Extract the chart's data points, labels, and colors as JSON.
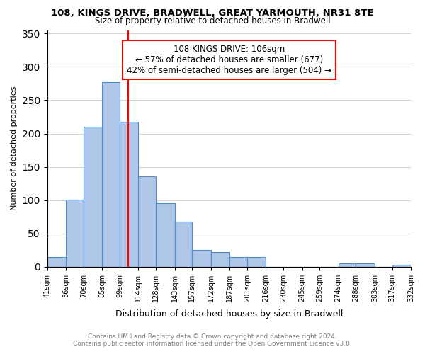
{
  "title1": "108, KINGS DRIVE, BRADWELL, GREAT YARMOUTH, NR31 8TE",
  "title2": "Size of property relative to detached houses in Bradwell",
  "xlabel": "Distribution of detached houses by size in Bradwell",
  "ylabel": "Number of detached properties",
  "bin_edges": [
    41,
    56,
    70,
    85,
    99,
    114,
    128,
    143,
    157,
    172,
    187,
    201,
    216,
    230,
    245,
    259,
    274,
    288,
    303,
    317,
    332
  ],
  "bin_labels": [
    "41sqm",
    "56sqm",
    "70sqm",
    "85sqm",
    "99sqm",
    "114sqm",
    "128sqm",
    "143sqm",
    "157sqm",
    "172sqm",
    "187sqm",
    "201sqm",
    "216sqm",
    "230sqm",
    "245sqm",
    "259sqm",
    "274sqm",
    "288sqm",
    "303sqm",
    "317sqm",
    "332sqm"
  ],
  "counts": [
    15,
    101,
    210,
    277,
    218,
    136,
    95,
    68,
    25,
    22,
    15,
    15,
    0,
    0,
    0,
    0,
    5,
    5,
    0,
    3
  ],
  "bar_facecolor": "#aec6e8",
  "bar_edgecolor": "#4d8fcc",
  "vline_x": 106,
  "vline_color": "red",
  "annotation_title": "108 KINGS DRIVE: 106sqm",
  "annotation_line1": "← 57% of detached houses are smaller (677)",
  "annotation_line2": "42% of semi-detached houses are larger (504) →",
  "annotation_box_edgecolor": "red",
  "ylim": [
    0,
    355
  ],
  "yticks": [
    0,
    50,
    100,
    150,
    200,
    250,
    300,
    350
  ],
  "footer1": "Contains HM Land Registry data © Crown copyright and database right 2024.",
  "footer2": "Contains public sector information licensed under the Open Government Licence v3.0."
}
